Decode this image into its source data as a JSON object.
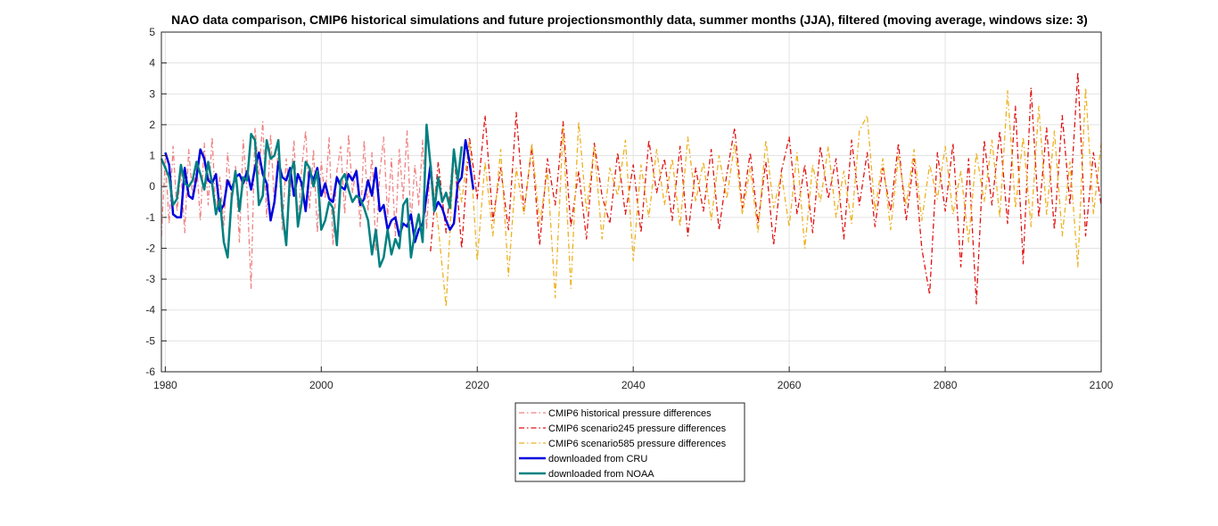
{
  "chart_data": {
    "type": "line",
    "title": "NAO data comparison, CMIP6 historical simulations and future projectionsmonthly data, summer months (JJA), filtered (moving average, windows size: 3)",
    "xlabel": "",
    "ylabel": "",
    "xlim": [
      1979.5,
      2100
    ],
    "ylim": [
      -6,
      5
    ],
    "xticks": [
      1980,
      2000,
      2020,
      2040,
      2060,
      2080,
      2100
    ],
    "yticks": [
      -6,
      -5,
      -4,
      -3,
      -2,
      -1,
      0,
      1,
      2,
      3,
      4,
      5
    ],
    "grid": true,
    "legend_position": "bottom-center",
    "series": [
      {
        "name": "CMIP6 historical pressure differences",
        "color": "#f08080",
        "style": "dash-dot",
        "x": [
          1979.5,
          1980,
          1980.5,
          1981,
          1981.5,
          1982,
          1982.5,
          1983,
          1983.5,
          1984,
          1984.5,
          1985,
          1985.5,
          1986,
          1986.5,
          1987,
          1987.5,
          1988,
          1988.5,
          1989,
          1989.5,
          1990,
          1990.5,
          1991,
          1991.5,
          1992,
          1992.5,
          1993,
          1993.5,
          1994,
          1994.5,
          1995,
          1995.5,
          1996,
          1996.5,
          1997,
          1997.5,
          1998,
          1998.5,
          1999,
          1999.5,
          2000,
          2000.5,
          2001,
          2001.5,
          2002,
          2002.5,
          2003,
          2003.5,
          2004,
          2004.5,
          2005,
          2005.5,
          2006,
          2006.5,
          2007,
          2007.5,
          2008,
          2008.5,
          2009,
          2009.5,
          2010,
          2010.5,
          2011,
          2011.5,
          2012,
          2012.5,
          2013,
          2013.5,
          2014,
          2014.5
        ],
        "values": [
          -1.6,
          0.9,
          -1.2,
          1.3,
          -0.8,
          0.5,
          -1.5,
          1.2,
          -0.3,
          0.8,
          -1.1,
          1.4,
          -0.6,
          1.6,
          -0.9,
          0.3,
          -1.3,
          1.1,
          -0.5,
          0.7,
          -1.8,
          1.5,
          -0.2,
          -3.3,
          1.9,
          0.4,
          2.1,
          -1.0,
          1.7,
          -0.6,
          1.3,
          -1.4,
          0.9,
          -0.3,
          1.5,
          -1.2,
          0.6,
          1.8,
          -0.7,
          1.2,
          -1.5,
          0.8,
          -0.4,
          1.6,
          -1.9,
          0.5,
          1.3,
          -0.9,
          1.7,
          -0.2,
          0.6,
          -1.3,
          1.5,
          -0.8,
          1.1,
          -2.1,
          0.4,
          1.6,
          -1.0,
          0.9,
          -1.6,
          1.2,
          -0.4,
          1.8,
          -1.2,
          0.7,
          -0.6,
          1.5,
          -1.4,
          0.8,
          -0.5
        ]
      },
      {
        "name": "CMIP6 scenario245 pressure differences",
        "color": "#e01010",
        "style": "dash-dot",
        "x": [
          2014,
          2015,
          2016,
          2017,
          2018,
          2019,
          2020,
          2021,
          2022,
          2023,
          2024,
          2025,
          2026,
          2027,
          2028,
          2029,
          2030,
          2031,
          2032,
          2033,
          2034,
          2035,
          2036,
          2037,
          2038,
          2039,
          2040,
          2041,
          2042,
          2043,
          2044,
          2045,
          2046,
          2047,
          2048,
          2049,
          2050,
          2051,
          2052,
          2053,
          2054,
          2055,
          2056,
          2057,
          2058,
          2059,
          2060,
          2061,
          2062,
          2063,
          2064,
          2065,
          2066,
          2067,
          2068,
          2069,
          2070,
          2071,
          2072,
          2073,
          2074,
          2075,
          2076,
          2077,
          2078,
          2079,
          2080,
          2081,
          2082,
          2083,
          2084,
          2085,
          2086,
          2087,
          2088,
          2089,
          2090,
          2091,
          2092,
          2093,
          2094,
          2095,
          2096,
          2097,
          2098,
          2099,
          2100
        ],
        "values": [
          -2.1,
          0.8,
          -1.5,
          1.2,
          -2.0,
          1.6,
          -0.4,
          2.3,
          -1.1,
          0.6,
          -1.4,
          2.4,
          -0.8,
          1.3,
          -1.9,
          0.9,
          -0.6,
          2.1,
          -1.3,
          0.5,
          -1.7,
          1.4,
          -0.3,
          -1.2,
          1.1,
          -0.9,
          0.7,
          -1.5,
          1.5,
          -0.2,
          0.9,
          -1.1,
          1.3,
          -1.6,
          0.6,
          -0.8,
          1.2,
          -1.4,
          0.4,
          1.9,
          -0.7,
          1.1,
          -1.2,
          0.8,
          -1.9,
          0.5,
          1.6,
          -0.9,
          0.7,
          -1.5,
          1.3,
          -0.4,
          0.9,
          -1.7,
          1.5,
          -0.6,
          1.1,
          -1.3,
          0.6,
          -0.8,
          1.4,
          -1.1,
          0.9,
          -2.0,
          -3.5,
          1.1,
          -0.8,
          1.4,
          -2.6,
          0.9,
          -3.8,
          1.5,
          -0.6,
          1.8,
          -1.2,
          2.6,
          -2.5,
          3.2,
          -1.0,
          1.9,
          -1.4,
          2.3,
          -0.6,
          3.7,
          -1.6,
          1.1,
          -0.6
        ]
      },
      {
        "name": "CMIP6 scenario585 pressure differences",
        "color": "#edb120",
        "style": "dash-dot",
        "x": [
          2014,
          2015,
          2016,
          2017,
          2018,
          2019,
          2020,
          2021,
          2022,
          2023,
          2024,
          2025,
          2026,
          2027,
          2028,
          2029,
          2030,
          2031,
          2032,
          2033,
          2034,
          2035,
          2036,
          2037,
          2038,
          2039,
          2040,
          2041,
          2042,
          2043,
          2044,
          2045,
          2046,
          2047,
          2048,
          2049,
          2050,
          2051,
          2052,
          2053,
          2054,
          2055,
          2056,
          2057,
          2058,
          2059,
          2060,
          2061,
          2062,
          2063,
          2064,
          2065,
          2066,
          2067,
          2068,
          2069,
          2070,
          2071,
          2072,
          2073,
          2074,
          2075,
          2076,
          2077,
          2078,
          2079,
          2080,
          2081,
          2082,
          2083,
          2084,
          2085,
          2086,
          2087,
          2088,
          2089,
          2090,
          2091,
          2092,
          2093,
          2094,
          2095,
          2096,
          2097,
          2098,
          2099,
          2100
        ],
        "values": [
          0.7,
          -1.3,
          -3.9,
          1.0,
          -0.5,
          1.5,
          -2.4,
          0.8,
          -1.6,
          1.2,
          -2.9,
          0.6,
          -0.9,
          1.4,
          -1.2,
          0.5,
          -3.6,
          1.9,
          -3.3,
          2.1,
          -0.8,
          1.3,
          -1.7,
          0.6,
          -0.3,
          1.5,
          -2.4,
          0.7,
          -1.0,
          1.2,
          -0.6,
          0.9,
          -1.3,
          1.6,
          -0.5,
          0.8,
          -1.1,
          1.0,
          -0.4,
          1.4,
          -0.9,
          0.6,
          -1.5,
          1.5,
          -0.7,
          0.4,
          -1.3,
          1.1,
          -2.0,
          0.7,
          -0.5,
          1.3,
          -1.0,
          0.5,
          -1.2,
          1.8,
          2.3,
          -0.8,
          0.9,
          -1.4,
          1.0,
          -0.6,
          1.2,
          -1.1,
          0.7,
          -0.4,
          1.3,
          -0.9,
          0.5,
          -1.8,
          1.1,
          -0.5,
          1.5,
          -1.0,
          3.1,
          -0.7,
          1.6,
          -1.3,
          2.6,
          -0.9,
          1.8,
          -1.6,
          0.8,
          -2.6,
          3.2,
          -0.9,
          1.4
        ]
      },
      {
        "name": "downloaded from CRU",
        "color": "#0000dd",
        "style": "solid",
        "x": [
          1980,
          1980.5,
          1981,
          1981.5,
          1982,
          1982.5,
          1983,
          1983.5,
          1984,
          1984.5,
          1985,
          1985.5,
          1986,
          1986.5,
          1987,
          1987.5,
          1988,
          1988.5,
          1989,
          1989.5,
          1990,
          1990.5,
          1991,
          1991.5,
          1992,
          1992.5,
          1993,
          1993.5,
          1994,
          1994.5,
          1995,
          1995.5,
          1996,
          1996.5,
          1997,
          1997.5,
          1998,
          1998.5,
          1999,
          1999.5,
          2000,
          2000.5,
          2001,
          2001.5,
          2002,
          2002.5,
          2003,
          2003.5,
          2004,
          2004.5,
          2005,
          2005.5,
          2006,
          2006.5,
          2007,
          2007.5,
          2008,
          2008.5,
          2009,
          2009.5,
          2010,
          2010.5,
          2011,
          2011.5,
          2012,
          2012.5,
          2013,
          2013.5,
          2014,
          2014.5,
          2015,
          2015.5,
          2016,
          2016.5,
          2017,
          2017.5,
          2018,
          2018.5,
          2019,
          2019.5
        ],
        "values": [
          1.1,
          0.7,
          -0.9,
          -1.0,
          -1.0,
          0.6,
          -0.3,
          -0.4,
          0.3,
          1.2,
          0.9,
          0.2,
          0.1,
          0.4,
          -0.8,
          -0.6,
          0.2,
          -0.1,
          0.3,
          0.4,
          0.1,
          0.5,
          -0.1,
          0.6,
          1.1,
          0.4,
          0.1,
          -1.1,
          -0.5,
          0.8,
          0.3,
          0.2,
          0.6,
          -0.3,
          0.4,
          0.1,
          -0.8,
          0.5,
          0.2,
          0.6,
          -0.3,
          0.1,
          -0.4,
          -0.5,
          0.3,
          0.0,
          -0.1,
          0.4,
          0.2,
          0.5,
          -0.6,
          -0.4,
          0.2,
          -0.3,
          0.6,
          -0.8,
          -0.6,
          -1.4,
          -1.1,
          -1.0,
          -1.6,
          -1.2,
          -1.3,
          -0.9,
          -1.8,
          -1.4,
          -1.2,
          -0.3,
          0.7,
          -0.8,
          -0.5,
          -0.7,
          -1.1,
          -1.4,
          -1.2,
          0.1,
          0.3,
          1.5,
          0.8,
          -0.1
        ]
      },
      {
        "name": "downloaded from NOAA",
        "color": "#008080",
        "style": "solid",
        "x": [
          1979.5,
          1980,
          1980.5,
          1981,
          1981.5,
          1982,
          1982.5,
          1983,
          1983.5,
          1984,
          1984.5,
          1985,
          1985.5,
          1986,
          1986.5,
          1987,
          1987.5,
          1988,
          1988.5,
          1989,
          1989.5,
          1990,
          1990.5,
          1991,
          1991.5,
          1992,
          1992.5,
          1993,
          1993.5,
          1994,
          1994.5,
          1995,
          1995.5,
          1996,
          1996.5,
          1997,
          1997.5,
          1998,
          1998.5,
          1999,
          1999.5,
          2000,
          2000.5,
          2001,
          2001.5,
          2002,
          2002.5,
          2003,
          2003.5,
          2004,
          2004.5,
          2005,
          2005.5,
          2006,
          2006.5,
          2007,
          2007.5,
          2008,
          2008.5,
          2009,
          2009.5,
          2010,
          2010.5,
          2011,
          2011.5,
          2012,
          2012.5,
          2013,
          2013.5,
          2014,
          2014.5,
          2015,
          2015.5,
          2016,
          2016.5,
          2017,
          2017.5,
          2018
        ],
        "values": [
          0.9,
          0.6,
          0.3,
          -0.6,
          -0.4,
          0.7,
          0.1,
          0.0,
          0.2,
          0.8,
          0.4,
          -0.1,
          0.8,
          0.1,
          -0.9,
          -0.4,
          -1.8,
          -2.3,
          -0.4,
          0.5,
          -0.8,
          0.3,
          0.2,
          1.7,
          1.5,
          -0.6,
          -0.3,
          1.5,
          0.9,
          1.0,
          1.5,
          -0.8,
          -1.9,
          0.4,
          0.8,
          -1.3,
          -0.5,
          0.8,
          0.6,
          0.0,
          0.5,
          -1.4,
          -1.1,
          -0.5,
          -0.7,
          -1.9,
          0.2,
          0.4,
          -0.1,
          -0.5,
          -0.3,
          -0.4,
          -0.7,
          -1.1,
          -2.2,
          -1.4,
          -2.6,
          -2.3,
          -1.4,
          -2.2,
          -1.7,
          -2.0,
          -0.6,
          -0.4,
          -2.3,
          -1.5,
          -0.9,
          -1.8,
          2.0,
          0.7,
          -0.8,
          0.3,
          -0.5,
          -0.2,
          -0.7,
          1.2,
          0.2,
          1.3
        ]
      }
    ]
  }
}
